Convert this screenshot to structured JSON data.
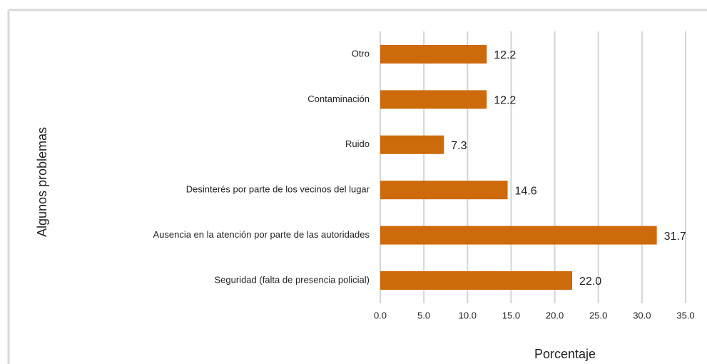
{
  "chart_data": {
    "type": "barh",
    "categories": [
      "Otro",
      "Contaminación",
      "Ruido",
      "Desinterés por parte de los vecinos del lugar",
      "Ausencia en la atención por parte de las autoridades",
      "Seguridad (falta de presencia policial)"
    ],
    "values": [
      12.2,
      12.2,
      7.3,
      14.6,
      31.7,
      22.0
    ],
    "value_labels": [
      "12.2",
      "12.2",
      "7.3",
      "14.6",
      "31.7",
      "22.0"
    ],
    "color": "#cc6a0c",
    "xlim": [
      0,
      35
    ],
    "xticks": [
      {
        "value": 0,
        "label": "0.0"
      },
      {
        "value": 5,
        "label": "5.0"
      },
      {
        "value": 10,
        "label": "10.0"
      },
      {
        "value": 15,
        "label": "15.0"
      },
      {
        "value": 20,
        "label": "20.0"
      },
      {
        "value": 25,
        "label": "25.0"
      },
      {
        "value": 30,
        "label": "30.0"
      },
      {
        "value": 35,
        "label": "35.0"
      }
    ],
    "xlabel": "Porcentaje",
    "ylabel": "Algunos problemas",
    "grid": true
  }
}
